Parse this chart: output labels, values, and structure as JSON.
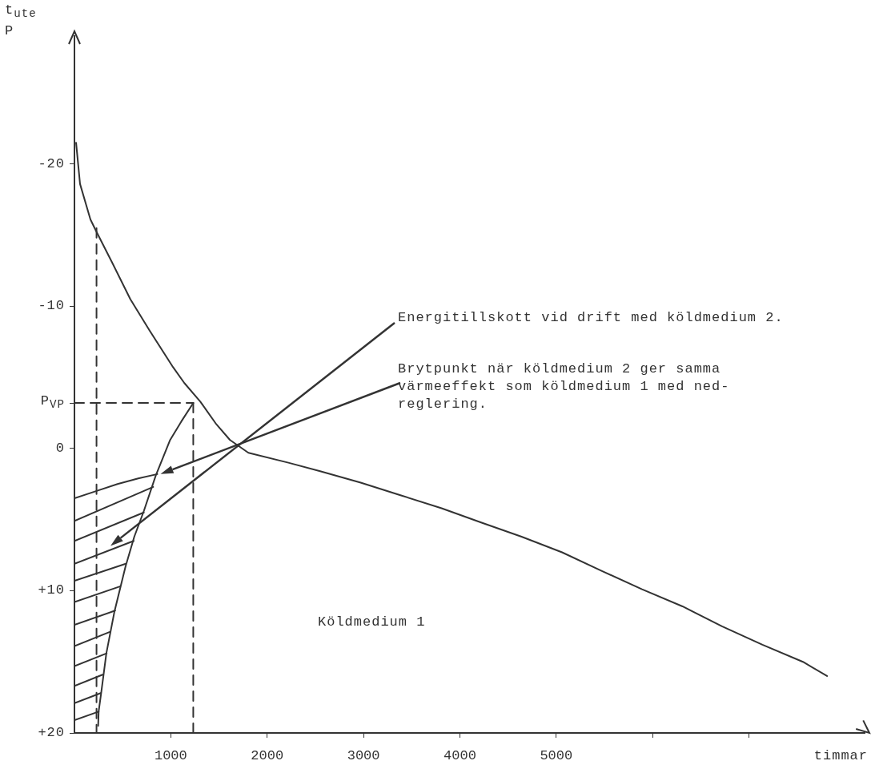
{
  "chart_data": {
    "type": "line",
    "ylabel": "t$_{ute}$\nP",
    "xlabel": "timmar",
    "xlim": [
      0,
      8200
    ],
    "xticks": [
      1000,
      2000,
      3000,
      4000,
      5000,
      {
        "value": 6000,
        "label": null
      },
      {
        "value": 7000,
        "label": null
      }
    ],
    "ylim": [
      20,
      -29
    ],
    "yticks": [
      -20,
      -10,
      {
        "value": -3.2,
        "label": "P$_{VP}$"
      },
      0,
      {
        "value": 10,
        "label": "+10"
      },
      {
        "value": 20,
        "label": "+20"
      }
    ],
    "grid": false,
    "legend": false,
    "marker": "none",
    "series": [
      {
        "color": "#333333",
        "line_style": "solid",
        "x": [
          17,
          58,
          166,
          224,
          389,
          580,
          779,
          1025,
          1141,
          1306,
          1473,
          1614,
          1805,
          2220,
          2550,
          2970,
          3390,
          3810,
          4220,
          4640,
          5060,
          5470,
          5890,
          6310,
          6720,
          7140,
          7560,
          7810
        ],
        "values": [
          -21.5,
          -18.6,
          -16.1,
          -15.3,
          -13.1,
          -10.5,
          -8.3,
          -5.7,
          -4.6,
          -3.3,
          -1.7,
          -0.6,
          0.3,
          1.0,
          1.6,
          2.4,
          3.3,
          4.2,
          5.2,
          6.2,
          7.3,
          8.6,
          9.9,
          11.1,
          12.5,
          13.8,
          15.0,
          16.0
        ]
      },
      {
        "color": "#333333",
        "line_style": "solid",
        "x": [
          246,
          251,
          279,
          331,
          414,
          530,
          621,
          720,
          844,
          993,
          1109,
          1233
        ],
        "values": [
          19.5,
          18.5,
          17.1,
          14.4,
          11.5,
          8.3,
          6.2,
          4.4,
          1.9,
          -0.6,
          -1.9,
          -3.2
        ]
      },
      {
        "color": "#333333",
        "line_style": "solid",
        "x": [
          0,
          224,
          447,
          662,
          860
        ],
        "values": [
          3.5,
          3.0,
          2.5,
          2.1,
          1.8
        ]
      },
      {
        "color": "#333333",
        "line_style": "solid",
        "x": [
          0,
          817,
          null,
          0,
          720,
          null,
          0,
          615,
          null,
          0,
          533,
          null,
          0,
          472,
          null,
          0,
          422,
          null,
          0,
          367,
          null,
          0,
          334,
          null,
          0,
          292,
          null,
          0,
          273,
          null,
          0,
          251
        ],
        "values": [
          5.1,
          2.7,
          null,
          6.5,
          4.5,
          null,
          8.1,
          6.5,
          null,
          9.3,
          8.1,
          null,
          10.8,
          9.7,
          null,
          12.4,
          11.4,
          null,
          13.9,
          12.9,
          null,
          15.3,
          14.4,
          null,
          16.7,
          15.9,
          null,
          17.9,
          17.2,
          null,
          19.1,
          18.5
        ]
      },
      {
        "color": "#333333",
        "line_style": "dashed",
        "x": [
          229,
          229
        ],
        "values": [
          -15.5,
          20
        ]
      },
      {
        "color": "#333333",
        "line_style": "dashed",
        "x": [
          0,
          1233
        ],
        "values": [
          -3.2,
          -3.2
        ]
      },
      {
        "color": "#333333",
        "line_style": "dashed",
        "x": [
          1233,
          1233
        ],
        "values": [
          -3.2,
          20
        ]
      }
    ],
    "annotations": [
      "Energitillskott vid drift med köldmedium 2.",
      "Brytpunkt när köldmedium 2 ger samma\nvärmeeffekt som köldmedium 1 med ned-\nreglering.",
      "Köldmedium 1"
    ]
  }
}
